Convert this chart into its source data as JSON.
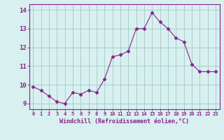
{
  "x": [
    0,
    1,
    2,
    3,
    4,
    5,
    6,
    7,
    8,
    9,
    10,
    11,
    12,
    13,
    14,
    15,
    16,
    17,
    18,
    19,
    20,
    21,
    22,
    23
  ],
  "y": [
    9.9,
    9.7,
    9.4,
    9.1,
    9.0,
    9.6,
    9.5,
    9.7,
    9.6,
    10.3,
    11.5,
    11.6,
    11.8,
    13.0,
    13.0,
    13.85,
    13.35,
    13.0,
    12.5,
    12.3,
    11.1,
    10.7,
    10.7,
    10.7
  ],
  "line_color": "#882288",
  "marker": "D",
  "marker_size": 2.5,
  "bg_color": "#d8f0f0",
  "grid_color": "#aacccc",
  "xlabel": "Windchill (Refroidissement éolien,°C)",
  "xlabel_color": "#882288",
  "tick_color": "#882288",
  "spine_color": "#882288",
  "xlim": [
    -0.5,
    23.5
  ],
  "ylim": [
    8.7,
    14.3
  ],
  "yticks": [
    9,
    10,
    11,
    12,
    13,
    14
  ],
  "xticks": [
    0,
    1,
    2,
    3,
    4,
    5,
    6,
    7,
    8,
    9,
    10,
    11,
    12,
    13,
    14,
    15,
    16,
    17,
    18,
    19,
    20,
    21,
    22,
    23
  ],
  "xtick_labels": [
    "0",
    "1",
    "2",
    "3",
    "4",
    "5",
    "6",
    "7",
    "8",
    "9",
    "10",
    "11",
    "12",
    "13",
    "14",
    "15",
    "16",
    "17",
    "18",
    "19",
    "20",
    "21",
    "22",
    "23"
  ]
}
